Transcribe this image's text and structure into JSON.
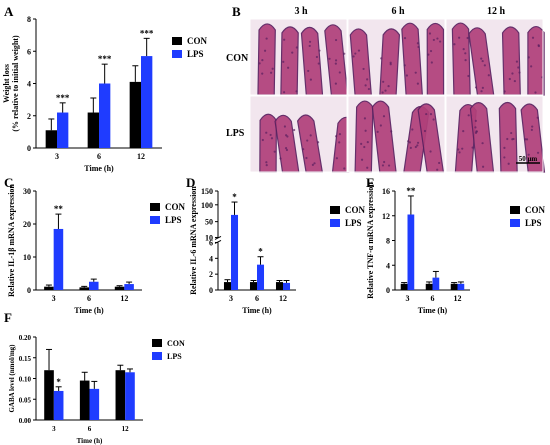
{
  "panel_letters": [
    "A",
    "B",
    "C",
    "D",
    "E",
    "F"
  ],
  "colors": {
    "con": "#000000",
    "lps": "#1f3cff",
    "bar_outline": "#000000"
  },
  "panel_b": {
    "time_labels": [
      "3 h",
      "6 h",
      "12 h"
    ],
    "row_labels": [
      "CON",
      "LPS"
    ],
    "scale_bar_label": "50 μm",
    "tissue_colors": {
      "villus": "#b0407a",
      "lumen": "#f2e6ee",
      "nucleus": "#5a2060",
      "background": "#fbf6f9"
    }
  },
  "chart_data": [
    {
      "panel": "A",
      "type": "bar",
      "ylabel": "Weight loss\n(% relative to initial weight)",
      "xlabel": "Time (h)",
      "categories": [
        "3",
        "6",
        "12"
      ],
      "ylim": [
        0,
        8
      ],
      "yticks": [
        0,
        2,
        4,
        6,
        8
      ],
      "series": [
        {
          "name": "CON",
          "values": [
            1.1,
            2.2,
            4.1
          ],
          "errors": [
            0.7,
            0.9,
            1.0
          ],
          "sig": [
            "",
            "",
            ""
          ]
        },
        {
          "name": "LPS",
          "values": [
            2.2,
            4.0,
            5.7
          ],
          "errors": [
            0.6,
            1.2,
            1.1
          ],
          "sig": [
            "***",
            "***",
            "***"
          ]
        }
      ]
    },
    {
      "panel": "C",
      "type": "bar",
      "ylabel": "Relative IL-1β mRNA expression",
      "xlabel": "Time (h)",
      "categories": [
        "3",
        "6",
        "12"
      ],
      "ylim": [
        0,
        30
      ],
      "yticks": [
        0,
        10,
        20,
        30
      ],
      "series": [
        {
          "name": "CON",
          "values": [
            1.0,
            0.8,
            1.0
          ],
          "errors": [
            0.5,
            0.3,
            0.3
          ],
          "sig": [
            "",
            "",
            ""
          ]
        },
        {
          "name": "LPS",
          "values": [
            18.5,
            2.5,
            1.8
          ],
          "errors": [
            4.5,
            0.8,
            0.6
          ],
          "sig": [
            "**",
            "",
            ""
          ]
        }
      ]
    },
    {
      "panel": "D",
      "type": "bar",
      "ylabel": "Relative IL-6 mRNA expression",
      "xlabel": "Time (h)",
      "categories": [
        "3",
        "6",
        "12"
      ],
      "axis_break": true,
      "yticks": [
        0,
        2,
        4,
        6,
        10,
        50,
        100,
        150
      ],
      "series": [
        {
          "name": "CON",
          "values": [
            1.0,
            1.0,
            1.0
          ],
          "errors": [
            0.3,
            0.2,
            0.2
          ],
          "sig": [
            "",
            "",
            ""
          ]
        },
        {
          "name": "LPS",
          "values": [
            70,
            3.2,
            0.9
          ],
          "errors": [
            40,
            1.0,
            0.3
          ],
          "sig": [
            "*",
            "*",
            ""
          ]
        }
      ]
    },
    {
      "panel": "E",
      "type": "bar",
      "ylabel": "Relative TNF-α mRNA expression",
      "xlabel": "Time (h)",
      "categories": [
        "3",
        "6",
        "12"
      ],
      "ylim": [
        0,
        16
      ],
      "yticks": [
        0,
        4,
        8,
        12,
        16
      ],
      "series": [
        {
          "name": "CON",
          "values": [
            1.0,
            1.0,
            1.0
          ],
          "errors": [
            0.2,
            0.3,
            0.2
          ],
          "sig": [
            "",
            "",
            ""
          ]
        },
        {
          "name": "LPS",
          "values": [
            12.2,
            2.0,
            1.0
          ],
          "errors": [
            3.0,
            1.0,
            0.3
          ],
          "sig": [
            "**",
            "",
            ""
          ]
        }
      ]
    },
    {
      "panel": "F",
      "type": "bar",
      "ylabel": "GABA level (nmol/mg)",
      "xlabel": "Time (h)",
      "categories": [
        "3",
        "6",
        "12"
      ],
      "ylim": [
        0,
        0.2
      ],
      "yticks": [
        0.0,
        0.05,
        0.1,
        0.15,
        0.2
      ],
      "series": [
        {
          "name": "CON",
          "values": [
            0.12,
            0.095,
            0.12
          ],
          "errors": [
            0.05,
            0.02,
            0.012
          ],
          "sig": [
            "",
            "",
            ""
          ]
        },
        {
          "name": "LPS",
          "values": [
            0.07,
            0.075,
            0.115
          ],
          "errors": [
            0.01,
            0.018,
            0.008
          ],
          "sig": [
            "*",
            "",
            ""
          ]
        }
      ]
    }
  ]
}
